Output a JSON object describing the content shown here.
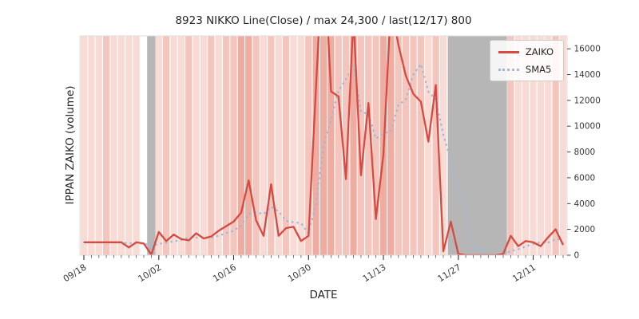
{
  "title": "8923 NIKKO Line(Close) / max 24,300 / last(12/17) 800",
  "axes": {
    "xlabel": "DATE",
    "ylabel": "IPPAN ZAIKO (volume)",
    "ylim": [
      0,
      17000
    ],
    "y_ticks": [
      0,
      2000,
      4000,
      6000,
      8000,
      10000,
      12000,
      14000,
      16000
    ],
    "x_tick_labels": [
      "09/18",
      "10/02",
      "10/16",
      "10/30",
      "11/13",
      "11/27",
      "12/11"
    ],
    "x_tick_indices": [
      0,
      10,
      20,
      30,
      40,
      50,
      60
    ]
  },
  "legend": {
    "entries": [
      {
        "label": "ZAIKO",
        "style": "solid"
      },
      {
        "label": "SMA5",
        "style": "dotted"
      }
    ]
  },
  "colors": {
    "zaiko": "#d64a41",
    "sma5": "#9fb9da",
    "tick_text": "#3a3a3a",
    "text": "#262626",
    "gray_band": "#a9a9a9",
    "legend_border": "#cccccc"
  },
  "chart_data": {
    "type": "line",
    "title": "8923 NIKKO Line(Close) / max 24,300 / last(12/17) 800",
    "xlabel": "DATE",
    "ylabel": "IPPAN ZAIKO (volume)",
    "ylim": [
      0,
      17000
    ],
    "x_unit": "trading-day index starting 09/18",
    "x_tick_labels": [
      "09/18",
      "10/02",
      "10/16",
      "10/30",
      "11/13",
      "11/27",
      "12/11"
    ],
    "x_tick_indices": [
      0,
      10,
      20,
      30,
      40,
      50,
      60
    ],
    "legend_position": "upper right",
    "series": [
      {
        "name": "ZAIKO",
        "style": "solid-red",
        "values": [
          1000,
          1000,
          1000,
          1000,
          1000,
          1000,
          600,
          1000,
          900,
          50,
          1800,
          1100,
          1600,
          1250,
          1150,
          1700,
          1300,
          1450,
          1900,
          2250,
          2600,
          3300,
          5800,
          2700,
          1500,
          5500,
          1500,
          2100,
          2200,
          1100,
          1500,
          13000,
          24300,
          12700,
          12300,
          5900,
          18500,
          6200,
          11800,
          2800,
          7800,
          19500,
          16300,
          13900,
          12500,
          11900,
          8800,
          13200,
          300,
          2600,
          100,
          0,
          0,
          0,
          0,
          0,
          100,
          1500,
          700,
          1100,
          1000,
          700,
          1400,
          2000,
          800
        ]
      },
      {
        "name": "SMA5",
        "style": "dotted-blue",
        "derivation": "5-point simple moving average of ZAIKO, computed at render"
      }
    ],
    "max_value": 24300,
    "last_value": 800,
    "last_date": "12/17"
  },
  "background": {
    "shade_colors": {
      "l": "#f8dbd5",
      "m": "#f4c5bc",
      "d": "#efaca0",
      "w": "#fcf1ef"
    },
    "day_shades": "lllmllllgglmllmllmlmmddmlmlmllmdddmmdmmmddmmmmlmlggggggggmlllllml",
    "gray_bands": [
      {
        "from": 8.45,
        "to": 9.55
      },
      {
        "from": 48.6,
        "to": 56.5
      }
    ]
  }
}
